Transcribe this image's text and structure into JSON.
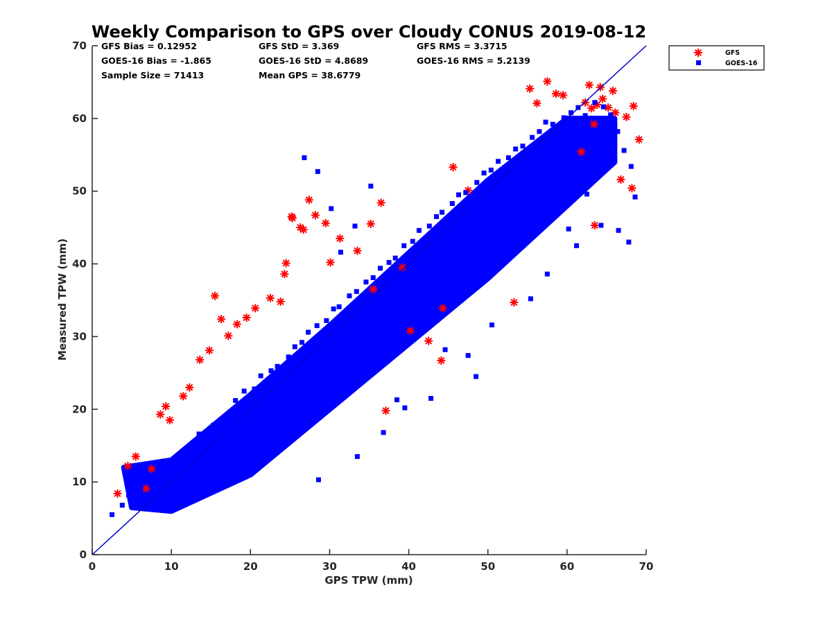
{
  "chart_data": {
    "type": "scatter",
    "title": "Weekly Comparison to GPS over Cloudy CONUS 2019-08-12",
    "xlabel": "GPS TPW (mm)",
    "ylabel": "Measured TPW (mm)",
    "xlim": [
      0,
      70
    ],
    "ylim": [
      0,
      70
    ],
    "xticks": [
      "0",
      "10",
      "20",
      "30",
      "40",
      "50",
      "60",
      "70"
    ],
    "yticks": [
      "0",
      "10",
      "20",
      "30",
      "40",
      "50",
      "60",
      "70"
    ],
    "grid": false,
    "legend_position": "outside-top-right",
    "reference_line": {
      "x": [
        0,
        70
      ],
      "y": [
        0,
        70
      ],
      "color": "#0000cc"
    },
    "stats": {
      "gfs_bias": "GFS Bias = 0.12952",
      "goes_bias": "GOES-16 Bias = -1.865",
      "sample_size": "Sample Size = 71413",
      "gfs_std": "GFS StD = 3.369",
      "goes_std": "GOES-16 StD = 4.8689",
      "mean_gps": "Mean GPS = 38.6779",
      "gfs_rms": "GFS RMS = 3.3715",
      "goes_rms": "GOES-16 RMS = 5.2139"
    },
    "series": [
      {
        "name": "GFS",
        "marker": "asterisk",
        "color": "#ff0000",
        "x": [
          3.2,
          4.5,
          5.5,
          6.8,
          7.5,
          8.6,
          9.3,
          9.8,
          11.5,
          12.3,
          13.6,
          14.8,
          15.5,
          16.3,
          17.2,
          18.3,
          19.5,
          20.6,
          22.5,
          23.8,
          24.5,
          25.2,
          26.3,
          27.4,
          28.2,
          29.5,
          31.3,
          33.5,
          35.2,
          36.5,
          39.2,
          44.1,
          37.1,
          53.3,
          56.2,
          59.5,
          62.3,
          63.1,
          63.8,
          64.5,
          65.2,
          66.1,
          67.5,
          68.4,
          69.1,
          64.2,
          62.8,
          65.8,
          63.4,
          61.8,
          66.8,
          68.2,
          57.5,
          55.3,
          58.6,
          63.5,
          25.3,
          26.7,
          24.3,
          30.1,
          35.5,
          47.5,
          45.6,
          44.3,
          40.2,
          42.5
        ],
        "y": [
          8.4,
          12.2,
          13.5,
          9.1,
          11.8,
          19.3,
          20.4,
          18.5,
          21.8,
          23.0,
          26.8,
          28.1,
          35.6,
          32.4,
          30.1,
          31.7,
          32.6,
          33.9,
          35.3,
          34.8,
          40.1,
          46.5,
          45.0,
          48.8,
          46.7,
          45.6,
          43.5,
          41.8,
          45.5,
          48.4,
          39.5,
          26.7,
          19.8,
          34.7,
          62.1,
          63.2,
          62.2,
          61.4,
          61.9,
          62.7,
          61.5,
          60.8,
          60.2,
          61.7,
          57.1,
          64.3,
          64.6,
          63.8,
          59.2,
          55.4,
          51.6,
          50.4,
          65.1,
          64.1,
          63.4,
          45.3,
          46.3,
          44.7,
          38.6,
          40.2,
          36.5,
          50.1,
          53.3,
          33.9,
          30.8,
          29.4
        ]
      },
      {
        "name": "GOES-16",
        "marker": "square",
        "color": "#0000ff",
        "x": [
          2.5,
          3.8,
          4.6,
          5.2,
          6.1,
          7.2,
          8.3,
          9.4,
          10.2,
          11.6,
          12.8,
          13.5,
          14.2,
          15.3,
          16.5,
          17.4,
          18.1,
          19.2,
          20.5,
          21.3,
          22.6,
          23.4,
          24.8,
          25.6,
          26.5,
          27.3,
          28.4,
          29.6,
          30.5,
          31.2,
          32.5,
          33.4,
          34.6,
          35.5,
          36.4,
          37.5,
          38.3,
          39.4,
          40.5,
          41.3,
          42.6,
          43.5,
          44.2,
          45.5,
          46.3,
          47.2,
          48.6,
          49.5,
          50.4,
          51.3,
          52.6,
          53.5,
          54.4,
          55.6,
          56.5,
          57.3,
          58.2,
          59.6,
          60.5,
          61.4,
          62.3,
          63.5,
          64.6,
          65.5,
          66.4,
          67.2,
          68.1,
          68.6,
          26.8,
          28.5,
          30.2,
          33.2,
          31.4,
          35.2,
          48.5,
          57.5,
          60.2,
          55.4,
          44.6,
          38.5,
          61.2,
          64.3,
          66.5,
          67.8,
          62.5,
          50.5,
          47.5,
          42.8,
          39.5,
          36.8,
          33.5,
          28.6
        ],
        "y": [
          5.5,
          6.8,
          8.2,
          7.6,
          9.3,
          10.5,
          8.6,
          12.2,
          11.5,
          13.8,
          14.5,
          16.6,
          15.4,
          17.8,
          18.5,
          19.6,
          21.2,
          22.5,
          22.8,
          24.6,
          25.3,
          25.9,
          27.2,
          28.6,
          29.2,
          30.6,
          31.5,
          32.2,
          33.8,
          34.1,
          35.6,
          36.2,
          37.5,
          38.1,
          39.4,
          40.2,
          40.8,
          42.5,
          43.1,
          44.6,
          45.2,
          46.5,
          47.1,
          48.3,
          49.5,
          49.8,
          51.2,
          52.5,
          52.9,
          54.1,
          54.6,
          55.8,
          56.2,
          57.4,
          58.2,
          59.5,
          59.2,
          60.1,
          60.8,
          61.5,
          60.4,
          62.2,
          61.6,
          60.5,
          58.2,
          55.6,
          53.4,
          49.2,
          54.6,
          52.7,
          47.6,
          45.2,
          41.6,
          50.7,
          24.5,
          38.6,
          44.8,
          35.2,
          28.2,
          21.3,
          42.5,
          45.3,
          44.6,
          43.0,
          49.6,
          31.6,
          27.4,
          21.5,
          20.2,
          16.8,
          13.5,
          10.3
        ]
      }
    ]
  }
}
